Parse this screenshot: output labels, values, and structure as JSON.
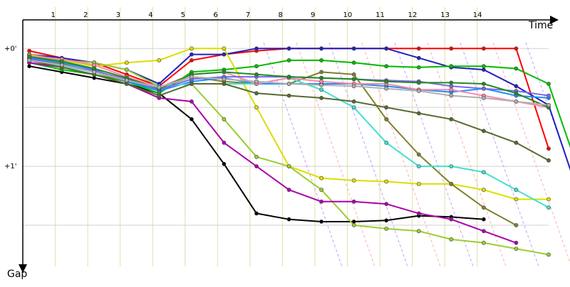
{
  "chart_data": {
    "type": "line",
    "title": "",
    "xlabel": "Time",
    "ylabel": "Gap",
    "x_ticks": [
      1,
      2,
      3,
      4,
      5,
      6,
      7,
      8,
      9,
      10,
      11,
      12,
      13,
      14
    ],
    "y_ticks": [
      "+0'",
      "+1'"
    ],
    "y_range_minutes": [
      -0.05,
      1.85
    ],
    "x_range": [
      0,
      16.2
    ],
    "grid": true,
    "series": [
      {
        "color": "#ff0000",
        "values": [
          0.02,
          0.08,
          0.12,
          0.22,
          0.32,
          0.1,
          0.05,
          0.02,
          0.0,
          0.0,
          0.0,
          0.0,
          0.0,
          0.0,
          0.0,
          0.0,
          0.85
        ]
      },
      {
        "color": "#2020c0",
        "values": [
          0.05,
          0.08,
          0.12,
          0.18,
          0.3,
          0.05,
          0.05,
          0.0,
          0.0,
          0.0,
          0.0,
          0.0,
          0.08,
          0.16,
          0.18,
          0.32,
          0.48,
          1.3,
          1.5
        ]
      },
      {
        "color": "#000000",
        "values": [
          0.15,
          0.2,
          0.25,
          0.3,
          0.38,
          0.6,
          0.98,
          1.4,
          1.45,
          1.47,
          1.47,
          1.46,
          1.42,
          1.43,
          1.45
        ]
      },
      {
        "color": "#00bb00",
        "values": [
          0.12,
          0.18,
          0.22,
          0.28,
          0.38,
          0.2,
          0.18,
          0.15,
          0.1,
          0.1,
          0.12,
          0.15,
          0.16,
          0.15,
          0.15,
          0.17,
          0.3,
          1.1
        ]
      },
      {
        "color": "#dddd00",
        "values": [
          0.05,
          0.1,
          0.15,
          0.12,
          0.1,
          0.0,
          0.0,
          0.5,
          1.0,
          1.1,
          1.12,
          1.13,
          1.15,
          1.15,
          1.2,
          1.28,
          1.28
        ]
      },
      {
        "color": "#9acd32",
        "values": [
          0.06,
          0.1,
          0.12,
          0.18,
          0.32,
          0.3,
          0.6,
          0.92,
          1.0,
          1.2,
          1.5,
          1.53,
          1.55,
          1.62,
          1.65,
          1.7,
          1.75
        ]
      },
      {
        "color": "#808030",
        "values": [
          0.08,
          0.13,
          0.2,
          0.28,
          0.34,
          0.24,
          0.28,
          0.3,
          0.3,
          0.2,
          0.22,
          0.6,
          0.9,
          1.15,
          1.35,
          1.5
        ]
      },
      {
        "color": "#1e90ff",
        "values": [
          0.08,
          0.12,
          0.18,
          0.28,
          0.36,
          0.28,
          0.25,
          0.3,
          0.3,
          0.3,
          0.3,
          0.32,
          0.35,
          0.37,
          0.34,
          0.4,
          0.42
        ]
      },
      {
        "color": "#40e0d0",
        "values": [
          0.1,
          0.15,
          0.2,
          0.26,
          0.32,
          0.3,
          0.3,
          0.3,
          0.25,
          0.35,
          0.5,
          0.8,
          1.0,
          1.0,
          1.05,
          1.2,
          1.35
        ]
      },
      {
        "color": "#ff88aa",
        "values": [
          0.06,
          0.09,
          0.14,
          0.24,
          0.33,
          0.22,
          0.2,
          0.3,
          0.25,
          0.28,
          0.3,
          0.3,
          0.35,
          0.35,
          0.4,
          0.45,
          0.5
        ]
      },
      {
        "color": "#aa00aa",
        "values": [
          0.12,
          0.16,
          0.22,
          0.3,
          0.42,
          0.45,
          0.8,
          1.0,
          1.2,
          1.3,
          1.3,
          1.32,
          1.4,
          1.45,
          1.55,
          1.65
        ]
      },
      {
        "color": "#556b2f",
        "values": [
          0.1,
          0.16,
          0.22,
          0.3,
          0.4,
          0.3,
          0.3,
          0.38,
          0.4,
          0.42,
          0.45,
          0.5,
          0.55,
          0.6,
          0.7,
          0.8,
          0.95
        ]
      },
      {
        "color": "#7b68ee",
        "values": [
          0.09,
          0.14,
          0.19,
          0.26,
          0.35,
          0.26,
          0.24,
          0.24,
          0.24,
          0.25,
          0.26,
          0.27,
          0.28,
          0.32,
          0.34,
          0.36,
          0.4
        ]
      },
      {
        "color": "#228b22",
        "values": [
          0.07,
          0.11,
          0.17,
          0.25,
          0.34,
          0.22,
          0.2,
          0.22,
          0.24,
          0.25,
          0.26,
          0.28,
          0.29,
          0.29,
          0.3,
          0.38,
          0.5
        ]
      },
      {
        "color": "#b0b0b0",
        "values": [
          0.1,
          0.14,
          0.2,
          0.27,
          0.33,
          0.24,
          0.26,
          0.28,
          0.3,
          0.31,
          0.32,
          0.34,
          0.36,
          0.4,
          0.42,
          0.45,
          0.48
        ]
      }
    ]
  }
}
